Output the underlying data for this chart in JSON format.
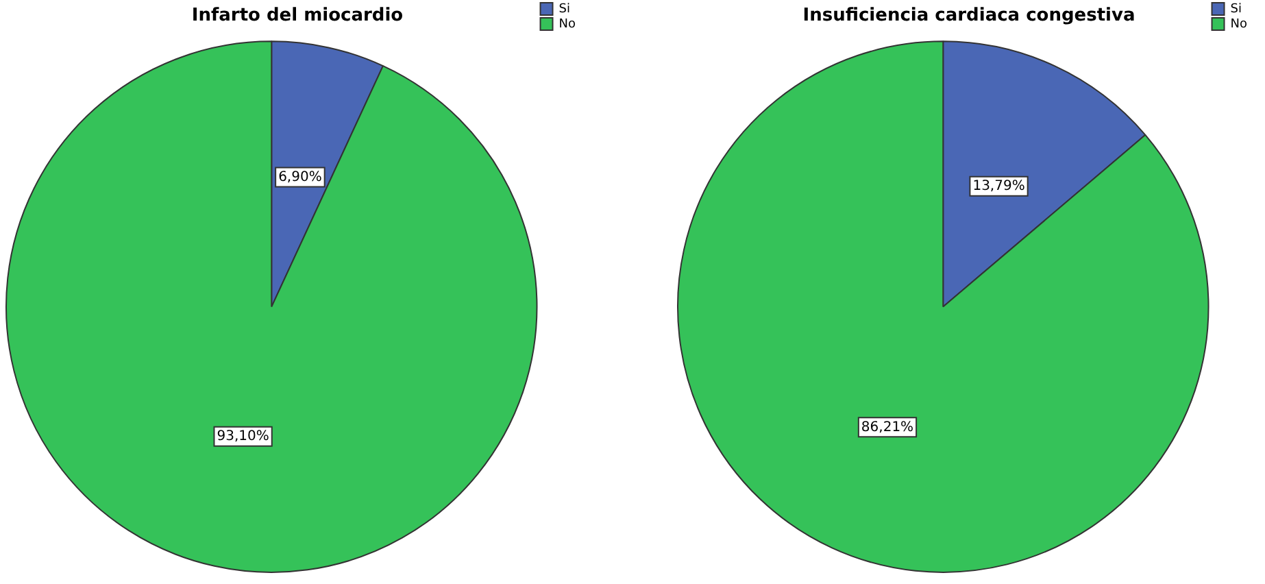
{
  "chart_data": [
    {
      "type": "pie",
      "title": "Infarto del miocardio",
      "categories": [
        "Si",
        "No"
      ],
      "values": [
        6.9,
        93.1
      ],
      "value_labels": [
        "6,90%",
        "93,10%"
      ],
      "colors": [
        "#4a67b5",
        "#35c259"
      ],
      "legend": "top right"
    },
    {
      "type": "pie",
      "title": "Insuficiencia cardiaca congestiva",
      "categories": [
        "Si",
        "No"
      ],
      "values": [
        13.79,
        86.21
      ],
      "value_labels": [
        "13,79%",
        "86,21%"
      ],
      "colors": [
        "#4a67b5",
        "#35c259"
      ],
      "legend": "top right"
    }
  ]
}
